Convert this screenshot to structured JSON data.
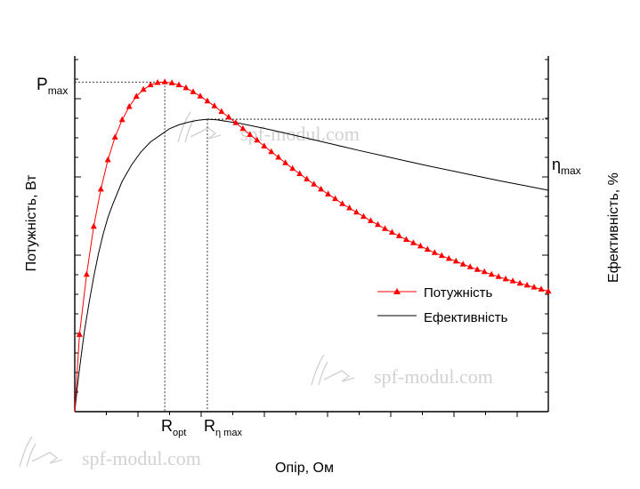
{
  "chart_data": {
    "type": "line",
    "title": "",
    "xlabel": "Опір, Ом",
    "ylabel_left": "Потужність, Вт",
    "ylabel_right": "Ефективність, %",
    "x_ticks": {
      "ropt": {
        "main": "R",
        "sub": "opt"
      },
      "reta": {
        "main": "R",
        "sub": "η max"
      }
    },
    "y_ticks": {
      "pmax": {
        "main": "P",
        "sub": "max"
      },
      "etamax": {
        "main": "η",
        "sub": "max"
      }
    },
    "xlim": [
      0,
      10
    ],
    "ylim": [
      0,
      1
    ],
    "legend_position": "center-right",
    "series": [
      {
        "name": "Потужність",
        "marker": "triangle",
        "color": "#ff0000",
        "x": [
          0,
          0.1,
          0.25,
          0.4,
          0.55,
          0.7,
          0.85,
          1.0,
          1.15,
          1.3,
          1.45,
          1.6,
          1.75,
          1.9,
          2.05,
          2.2,
          2.35,
          2.5,
          2.65,
          2.8,
          2.95,
          3.1,
          3.25,
          3.4,
          3.55,
          3.7,
          3.85,
          4.0,
          4.15,
          4.3,
          4.45,
          4.6,
          4.75,
          4.9,
          5.05,
          5.2,
          5.35,
          5.5,
          5.65,
          5.8,
          5.95,
          6.1,
          6.25,
          6.4,
          6.55,
          6.7,
          6.85,
          7.0,
          7.15,
          7.3,
          7.45,
          7.6,
          7.75,
          7.9,
          8.05,
          8.2,
          8.35,
          8.5,
          8.65,
          8.8,
          8.95,
          9.1,
          9.25,
          9.4,
          9.55,
          9.7,
          9.85,
          10.0
        ],
        "values": [
          0,
          0.234,
          0.417,
          0.563,
          0.676,
          0.765,
          0.834,
          0.887,
          0.927,
          0.958,
          0.979,
          0.993,
          1.0,
          1.002,
          0.999,
          0.993,
          0.984,
          0.972,
          0.959,
          0.944,
          0.929,
          0.912,
          0.895,
          0.878,
          0.86,
          0.842,
          0.825,
          0.807,
          0.79,
          0.773,
          0.756,
          0.739,
          0.723,
          0.707,
          0.691,
          0.676,
          0.661,
          0.647,
          0.632,
          0.619,
          0.606,
          0.593,
          0.58,
          0.568,
          0.556,
          0.545,
          0.534,
          0.523,
          0.513,
          0.503,
          0.493,
          0.483,
          0.474,
          0.465,
          0.457,
          0.448,
          0.44,
          0.432,
          0.425,
          0.417,
          0.41,
          0.403,
          0.397,
          0.39,
          0.384,
          0.378,
          0.372,
          0.366
        ]
      },
      {
        "name": "Ефективність",
        "marker": "none",
        "color": "#000000",
        "x": [
          0,
          0.05,
          0.1,
          0.2,
          0.3,
          0.4,
          0.5,
          0.6,
          0.7,
          0.8,
          1.0,
          1.2,
          1.4,
          1.6,
          1.8,
          2.0,
          2.2,
          2.4,
          2.6,
          2.8,
          3.0,
          3.5,
          4.0,
          4.5,
          5.0,
          5.5,
          6.0,
          6.5,
          7.0,
          7.5,
          8.0,
          8.5,
          9.0,
          9.5,
          10.0
        ],
        "values": [
          0,
          0.07,
          0.13,
          0.24,
          0.33,
          0.41,
          0.48,
          0.54,
          0.59,
          0.63,
          0.7,
          0.75,
          0.79,
          0.82,
          0.84,
          0.86,
          0.872,
          0.88,
          0.886,
          0.889,
          0.887,
          0.876,
          0.861,
          0.845,
          0.828,
          0.811,
          0.794,
          0.778,
          0.762,
          0.746,
          0.731,
          0.716,
          0.701,
          0.687,
          0.673
        ]
      }
    ]
  },
  "watermarks": [
    {
      "text": "spf-modul.com"
    },
    {
      "text": "spf-modul.com"
    },
    {
      "text": "spf-modul.com"
    }
  ]
}
